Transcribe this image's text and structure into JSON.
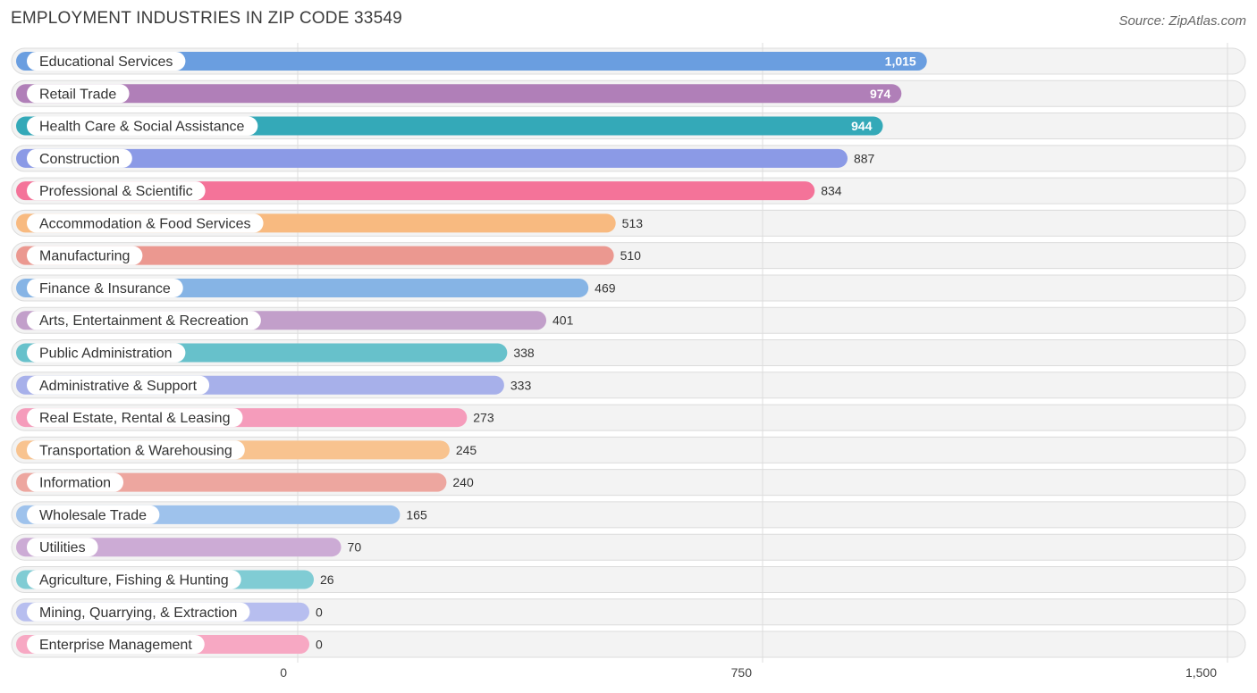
{
  "chart_data": {
    "type": "bar",
    "orientation": "horizontal",
    "title": "EMPLOYMENT INDUSTRIES IN ZIP CODE 33549",
    "source": "Source: ZipAtlas.com",
    "xlabel": "",
    "ylabel": "",
    "xlim": [
      0,
      1500
    ],
    "ticks": [
      {
        "value": 0,
        "label": "0"
      },
      {
        "value": 750,
        "label": "750"
      },
      {
        "value": 1500,
        "label": "1,500"
      }
    ],
    "categories": [
      "Educational Services",
      "Retail Trade",
      "Health Care & Social Assistance",
      "Construction",
      "Professional & Scientific",
      "Accommodation & Food Services",
      "Manufacturing",
      "Finance & Insurance",
      "Arts, Entertainment & Recreation",
      "Public Administration",
      "Administrative & Support",
      "Real Estate, Rental & Leasing",
      "Transportation & Warehousing",
      "Information",
      "Wholesale Trade",
      "Utilities",
      "Agriculture, Fishing & Hunting",
      "Mining, Quarrying, & Extraction",
      "Enterprise Management"
    ],
    "values": [
      1015,
      974,
      944,
      887,
      834,
      513,
      510,
      469,
      401,
      338,
      333,
      273,
      245,
      240,
      165,
      70,
      26,
      0,
      0
    ],
    "value_labels": [
      "1,015",
      "974",
      "944",
      "887",
      "834",
      "513",
      "510",
      "469",
      "401",
      "338",
      "333",
      "273",
      "245",
      "240",
      "165",
      "70",
      "26",
      "0",
      "0"
    ],
    "colors": [
      "#6a9ee0",
      "#b07fb8",
      "#34a9b8",
      "#8b9ae6",
      "#f47399",
      "#f8ba80",
      "#eb9890",
      "#86b4e5",
      "#c29fca",
      "#67c1cb",
      "#a7b0ea",
      "#f59cbb",
      "#f8c38f",
      "#eda69f",
      "#9ec2ec",
      "#ccabd5",
      "#80ccd4",
      "#b7beef",
      "#f7a8c3"
    ],
    "grid": true,
    "legend": "none"
  }
}
